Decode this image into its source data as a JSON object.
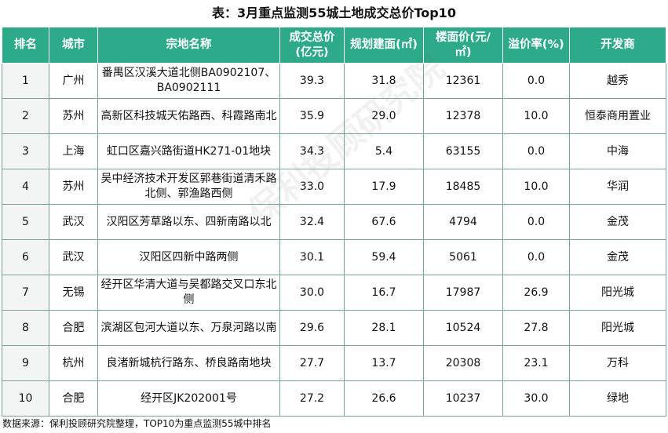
{
  "title": "表：3月重点监测55城土地成交总价Top10",
  "headers": {
    "rank": "排名",
    "city": "城市",
    "parcel": "宗地名称",
    "total_l1": "成交总价",
    "total_l2": "(亿元)",
    "area": "规划建面(㎡)",
    "floor_price_l1": "楼面价(元/",
    "floor_price_l2": "㎡)",
    "premium": "溢价率(%)",
    "developer": "开发商"
  },
  "rows": [
    {
      "rank": "1",
      "city": "广州",
      "name": "番禺区汉溪大道北侧BA0902107、BA0902111",
      "total": "39.3",
      "area": "31.8",
      "floor_price": "12361",
      "premium": "0.0",
      "developer": "越秀"
    },
    {
      "rank": "2",
      "city": "苏州",
      "name": "高新区科技城天佑路西、科霞路南北",
      "total": "35.9",
      "area": "29.0",
      "floor_price": "12378",
      "premium": "10.0",
      "developer": "恒泰商用置业"
    },
    {
      "rank": "3",
      "city": "上海",
      "name": "虹口区嘉兴路街道HK271-01地块",
      "total": "34.3",
      "area": "5.4",
      "floor_price": "63155",
      "premium": "0.0",
      "developer": "中海"
    },
    {
      "rank": "4",
      "city": "苏州",
      "name": "吴中经济技术开发区郭巷街道清禾路北侧、郭渔路西侧",
      "total": "33.0",
      "area": "17.9",
      "floor_price": "18485",
      "premium": "10.0",
      "developer": "华润"
    },
    {
      "rank": "5",
      "city": "武汉",
      "name": "汉阳区芳草路以东、四新南路以北",
      "total": "32.4",
      "area": "67.6",
      "floor_price": "4794",
      "premium": "0.0",
      "developer": "金茂"
    },
    {
      "rank": "6",
      "city": "武汉",
      "name": "汉阳区四新中路两侧",
      "total": "30.1",
      "area": "59.4",
      "floor_price": "5061",
      "premium": "0.0",
      "developer": "金茂"
    },
    {
      "rank": "7",
      "city": "无锡",
      "name": "经开区华清大道与吴都路交叉口东北侧",
      "total": "30.0",
      "area": "16.7",
      "floor_price": "17987",
      "premium": "26.9",
      "developer": "阳光城"
    },
    {
      "rank": "8",
      "city": "合肥",
      "name": "滨湖区包河大道以东、万泉河路以南",
      "total": "29.6",
      "area": "28.1",
      "floor_price": "10524",
      "premium": "27.8",
      "developer": "阳光城"
    },
    {
      "rank": "9",
      "city": "杭州",
      "name": "良渚新城杭行路东、桥良路南地块",
      "total": "27.7",
      "area": "13.7",
      "floor_price": "20308",
      "premium": "23.1",
      "developer": "万科"
    },
    {
      "rank": "10",
      "city": "合肥",
      "name": "经开区JK202001号",
      "total": "27.2",
      "area": "26.6",
      "floor_price": "10237",
      "premium": "30.0",
      "developer": "绿地"
    }
  ],
  "note": "数据来源：保利投顾研究院整理，TOP10为重点监测55城中排名",
  "watermark": "保利投顾研究院",
  "colors": {
    "header_bg": "#2daa8a",
    "header_text": "#ffffff",
    "border": "#7aa39a"
  }
}
